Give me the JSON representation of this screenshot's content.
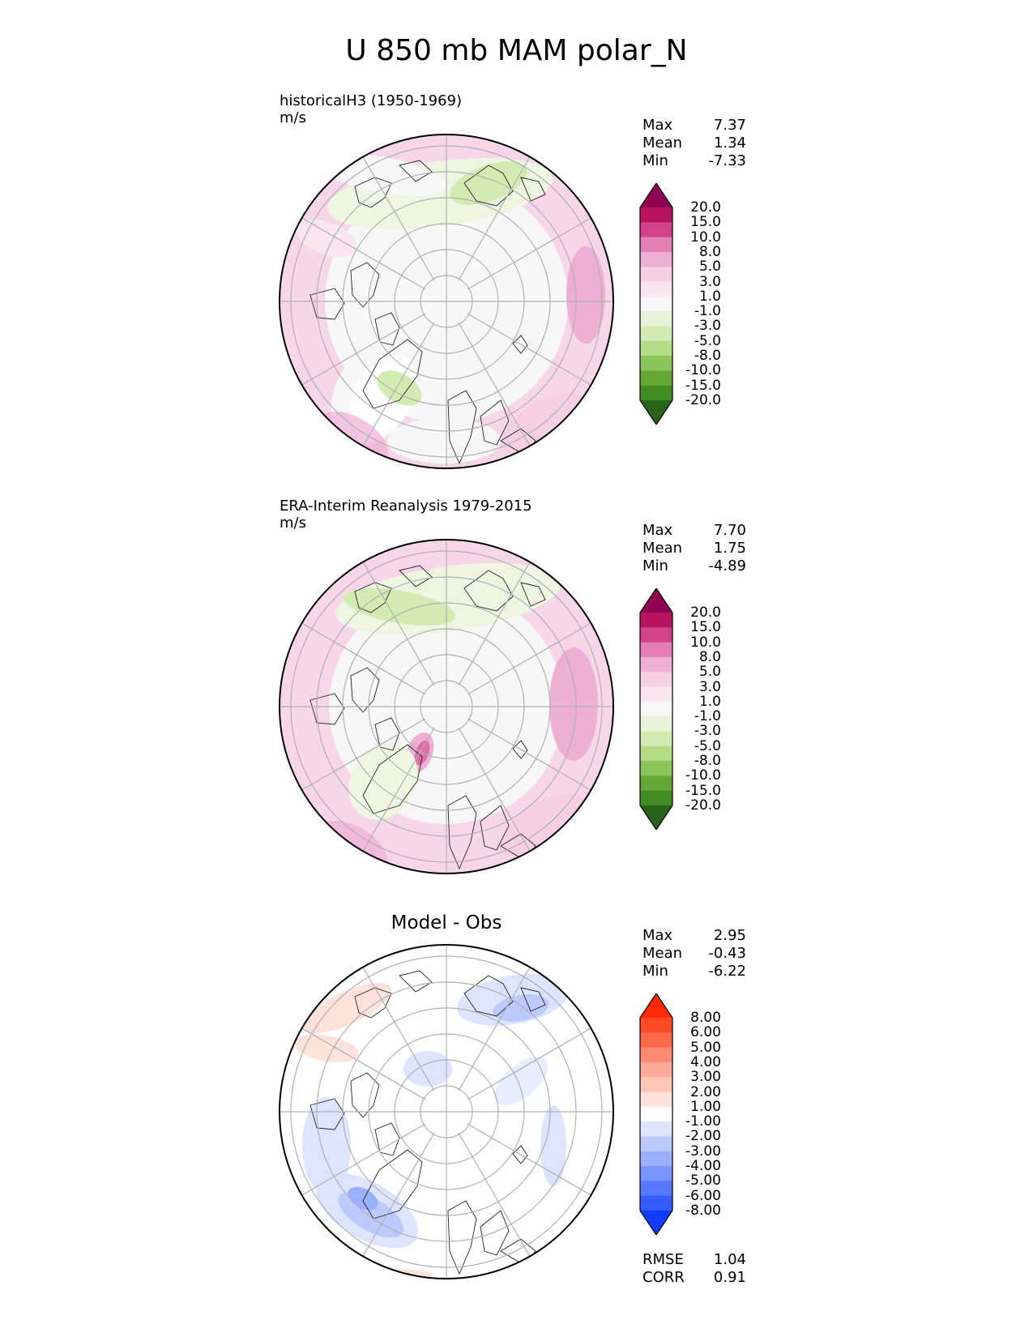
{
  "figure_title": "U 850 mb MAM polar_N",
  "panels": [
    {
      "title": "historicalH3 (1950-1969)",
      "units": "m/s",
      "stats": {
        "max_label": "Max",
        "max": "7.37",
        "mean_label": "Mean",
        "mean": "1.34",
        "min_label": "Min",
        "min": "-7.33"
      },
      "colorbar": {
        "levels": [
          "20.0",
          "15.0",
          "10.0",
          "8.0",
          "5.0",
          "3.0",
          "1.0",
          "-1.0",
          "-3.0",
          "-5.0",
          "-8.0",
          "-10.0",
          "-15.0",
          "-20.0"
        ],
        "colors": [
          "#8e0152",
          "#b7135f",
          "#d0428b",
          "#e37fb4",
          "#efaed4",
          "#f6cfe5",
          "#fae6f0",
          "#f7f7f7",
          "#e8f4d8",
          "#d2ebb3",
          "#b2dc86",
          "#8bc458",
          "#65a735",
          "#418c23",
          "#276419"
        ]
      }
    },
    {
      "title": "ERA-Interim Reanalysis 1979-2015",
      "units": "m/s",
      "stats": {
        "max_label": "Max",
        "max": "7.70",
        "mean_label": "Mean",
        "mean": "1.75",
        "min_label": "Min",
        "min": "-4.89"
      },
      "colorbar": {
        "levels": [
          "20.0",
          "15.0",
          "10.0",
          "8.0",
          "5.0",
          "3.0",
          "1.0",
          "-1.0",
          "-3.0",
          "-5.0",
          "-8.0",
          "-10.0",
          "-15.0",
          "-20.0"
        ],
        "colors": [
          "#8e0152",
          "#b7135f",
          "#d0428b",
          "#e37fb4",
          "#efaed4",
          "#f6cfe5",
          "#fae6f0",
          "#f7f7f7",
          "#e8f4d8",
          "#d2ebb3",
          "#b2dc86",
          "#8bc458",
          "#65a735",
          "#418c23",
          "#276419"
        ]
      }
    },
    {
      "title": "Model - Obs",
      "stats": {
        "max_label": "Max",
        "max": "2.95",
        "mean_label": "Mean",
        "mean": "-0.43",
        "min_label": "Min",
        "min": "-6.22"
      },
      "colorbar": {
        "levels": [
          "8.00",
          "6.00",
          "5.00",
          "4.00",
          "3.00",
          "2.00",
          "1.00",
          "-1.00",
          "-2.00",
          "-3.00",
          "-4.00",
          "-5.00",
          "-6.00",
          "-8.00"
        ],
        "colors": [
          "#ff2a00",
          "#ff4a24",
          "#ff6a4a",
          "#ff8a72",
          "#ffaa98",
          "#ffc6b8",
          "#ffe2da",
          "#ffffff",
          "#dde4ff",
          "#bccaff",
          "#9aafff",
          "#7894ff",
          "#5678ff",
          "#345cff",
          "#0f3cff"
        ]
      },
      "footer": {
        "rmse_label": "RMSE",
        "rmse": "1.04",
        "corr_label": "CORR",
        "corr": "0.91"
      }
    }
  ]
}
